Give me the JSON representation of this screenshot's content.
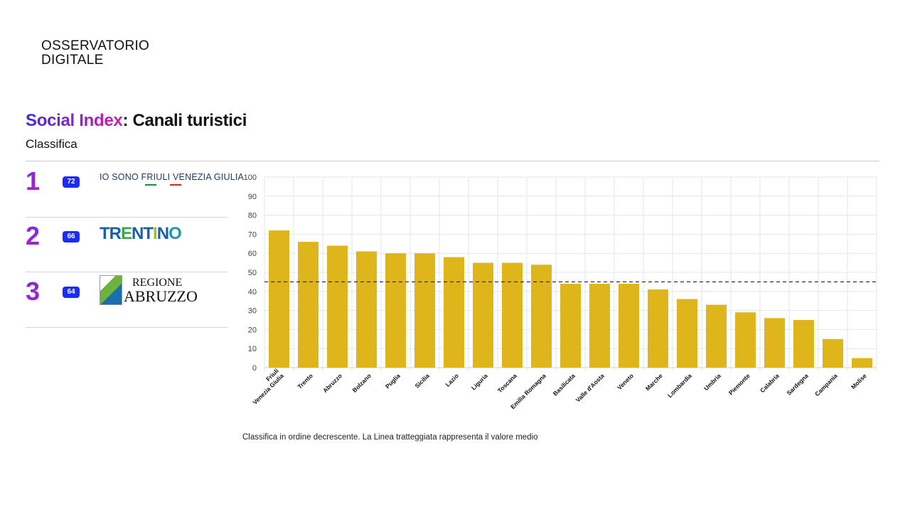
{
  "brand": {
    "line1": "OSSERVATORIO",
    "line2": "DIGITALE"
  },
  "header": {
    "title_highlight": "Social Index",
    "title_rest": ": Canali turistici",
    "subtitle": "Classifica"
  },
  "ranking": [
    {
      "rank": "1",
      "score": "72",
      "logo_text": "IO SONO FRIULI VENEZIA GIULIA"
    },
    {
      "rank": "2",
      "score": "66",
      "logo_text": "TRENTINO"
    },
    {
      "rank": "3",
      "score": "64",
      "logo_line1": "REGIONE",
      "logo_line2": "ABRUZZO"
    }
  ],
  "colors": {
    "bar": "#dfb51c",
    "badge": "#1d2cf5",
    "mean_line": "#333333"
  },
  "chart_data": {
    "type": "bar",
    "categories": [
      "Friuli\nVenezia Giulia",
      "Trento",
      "Abruzzo",
      "Bolzano",
      "Puglia",
      "Sicilia",
      "Lazio",
      "Liguria",
      "Toscana",
      "Emilia Romagna",
      "Basilicata",
      "Valle d'Aosta",
      "Veneto",
      "Marche",
      "Lombardia",
      "Umbria",
      "Piemonte",
      "Calabria",
      "Sardegna",
      "Campania",
      "Molise"
    ],
    "values": [
      72,
      66,
      64,
      61,
      60,
      60,
      58,
      55,
      55,
      54,
      44,
      44,
      44,
      41,
      36,
      33,
      29,
      26,
      25,
      15,
      5
    ],
    "mean": 45,
    "ylim": [
      0,
      100
    ],
    "yticks": [
      "0",
      "10",
      "20",
      "30",
      "40",
      "50",
      "60",
      "70",
      "80",
      "90",
      "100"
    ],
    "grid": true,
    "title": "",
    "xlabel": "",
    "ylabel": ""
  },
  "caption": "Classifica in ordine decrescente. La Linea tratteggiata rappresenta il valore medio"
}
